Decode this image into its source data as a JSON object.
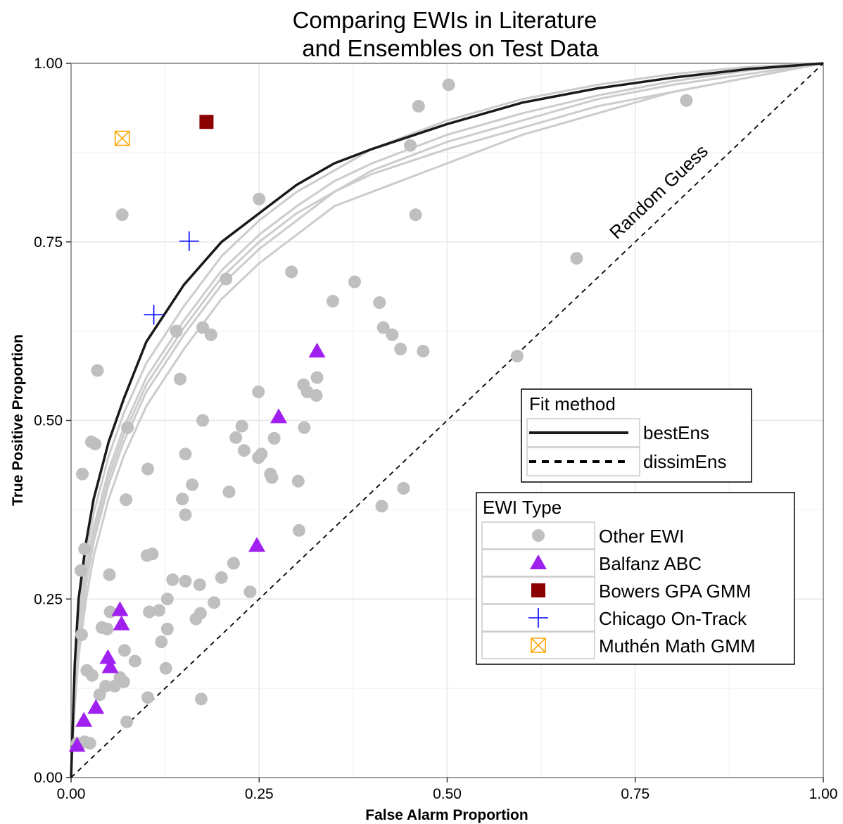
{
  "chart_data": {
    "type": "scatter",
    "title": [
      "Comparing EWIs in Literature",
      "and Ensembles on Test Data"
    ],
    "xlabel": "False Alarm Proportion",
    "ylabel": "True Positive Proportion",
    "xlim": [
      0,
      1
    ],
    "ylim": [
      0,
      1
    ],
    "x_ticks": [
      {
        "value": 0,
        "label": "0.00"
      },
      {
        "value": 0.25,
        "label": "0.25"
      },
      {
        "value": 0.5,
        "label": "0.50"
      },
      {
        "value": 0.75,
        "label": "0.75"
      },
      {
        "value": 1,
        "label": "1.00"
      }
    ],
    "y_ticks": [
      {
        "value": 0,
        "label": "0.00"
      },
      {
        "value": 0.25,
        "label": "0.25"
      },
      {
        "value": 0.5,
        "label": "0.50"
      },
      {
        "value": 0.75,
        "label": "0.75"
      },
      {
        "value": 1,
        "label": "1.00"
      }
    ],
    "grid": true,
    "annotation": {
      "text": "Random Guess",
      "x": 0.8,
      "y": 0.8
    },
    "fit_legend": {
      "title": "Fit method",
      "entries": [
        {
          "label": "bestEns",
          "line": "solid"
        },
        {
          "label": "dissimEns",
          "line": "dashed"
        }
      ]
    },
    "type_legend": {
      "title": "EWI Type",
      "entries": [
        {
          "label": "Other EWI",
          "shape": "circle",
          "color": "#bfbfbf"
        },
        {
          "label": "Balfanz ABC",
          "shape": "triangle",
          "color": "#a020f0"
        },
        {
          "label": "Bowers GPA GMM",
          "shape": "square",
          "color": "#8b0000"
        },
        {
          "label": "Chicago On-Track",
          "shape": "plus",
          "color": "#0000ff"
        },
        {
          "label": "Muthén Math GMM",
          "shape": "boxx",
          "color": "#ffa500"
        }
      ]
    },
    "curves": [
      {
        "name": "bestEns",
        "style": "solid",
        "color": "#1a1a1a",
        "points": [
          [
            0,
            0
          ],
          [
            0.005,
            0.16
          ],
          [
            0.01,
            0.25
          ],
          [
            0.02,
            0.33
          ],
          [
            0.03,
            0.39
          ],
          [
            0.05,
            0.47
          ],
          [
            0.07,
            0.53
          ],
          [
            0.1,
            0.61
          ],
          [
            0.15,
            0.69
          ],
          [
            0.2,
            0.75
          ],
          [
            0.25,
            0.79
          ],
          [
            0.3,
            0.83
          ],
          [
            0.35,
            0.86
          ],
          [
            0.4,
            0.88
          ],
          [
            0.5,
            0.915
          ],
          [
            0.6,
            0.945
          ],
          [
            0.7,
            0.965
          ],
          [
            0.8,
            0.98
          ],
          [
            0.9,
            0.992
          ],
          [
            1,
            1
          ]
        ]
      },
      {
        "style": "solid",
        "color": "#cccccc",
        "points": [
          [
            0,
            0
          ],
          [
            0.005,
            0.12
          ],
          [
            0.01,
            0.2
          ],
          [
            0.02,
            0.28
          ],
          [
            0.03,
            0.34
          ],
          [
            0.05,
            0.42
          ],
          [
            0.07,
            0.48
          ],
          [
            0.1,
            0.55
          ],
          [
            0.15,
            0.63
          ],
          [
            0.2,
            0.7
          ],
          [
            0.25,
            0.75
          ],
          [
            0.3,
            0.79
          ],
          [
            0.35,
            0.82
          ],
          [
            0.4,
            0.845
          ],
          [
            0.5,
            0.88
          ],
          [
            0.6,
            0.91
          ],
          [
            0.7,
            0.94
          ],
          [
            0.8,
            0.96
          ],
          [
            0.9,
            0.98
          ],
          [
            1,
            1
          ]
        ]
      },
      {
        "style": "solid",
        "color": "#cccccc",
        "points": [
          [
            0,
            0
          ],
          [
            0.005,
            0.1
          ],
          [
            0.01,
            0.17
          ],
          [
            0.02,
            0.25
          ],
          [
            0.03,
            0.31
          ],
          [
            0.05,
            0.39
          ],
          [
            0.07,
            0.45
          ],
          [
            0.1,
            0.52
          ],
          [
            0.15,
            0.6
          ],
          [
            0.2,
            0.67
          ],
          [
            0.25,
            0.72
          ],
          [
            0.3,
            0.76
          ],
          [
            0.35,
            0.8
          ],
          [
            0.4,
            0.82
          ],
          [
            0.45,
            0.84
          ],
          [
            0.5,
            0.86
          ],
          [
            0.6,
            0.9
          ],
          [
            0.7,
            0.93
          ],
          [
            0.8,
            0.96
          ],
          [
            0.9,
            0.98
          ],
          [
            1,
            1
          ]
        ]
      },
      {
        "style": "solid",
        "color": "#cccccc",
        "points": [
          [
            0,
            0
          ],
          [
            0.005,
            0.11
          ],
          [
            0.01,
            0.19
          ],
          [
            0.02,
            0.27
          ],
          [
            0.03,
            0.33
          ],
          [
            0.05,
            0.41
          ],
          [
            0.07,
            0.47
          ],
          [
            0.1,
            0.54
          ],
          [
            0.15,
            0.62
          ],
          [
            0.2,
            0.69
          ],
          [
            0.25,
            0.74
          ],
          [
            0.3,
            0.78
          ],
          [
            0.35,
            0.82
          ],
          [
            0.4,
            0.85
          ],
          [
            0.5,
            0.89
          ],
          [
            0.6,
            0.92
          ],
          [
            0.7,
            0.95
          ],
          [
            0.8,
            0.97
          ],
          [
            0.9,
            0.985
          ],
          [
            1,
            1
          ]
        ]
      },
      {
        "style": "solid",
        "color": "#cccccc",
        "points": [
          [
            0,
            0
          ],
          [
            0.005,
            0.14
          ],
          [
            0.01,
            0.22
          ],
          [
            0.02,
            0.31
          ],
          [
            0.03,
            0.37
          ],
          [
            0.05,
            0.45
          ],
          [
            0.07,
            0.51
          ],
          [
            0.1,
            0.58
          ],
          [
            0.15,
            0.66
          ],
          [
            0.2,
            0.73
          ],
          [
            0.25,
            0.78
          ],
          [
            0.3,
            0.82
          ],
          [
            0.35,
            0.85
          ],
          [
            0.4,
            0.88
          ],
          [
            0.5,
            0.92
          ],
          [
            0.6,
            0.95
          ],
          [
            0.7,
            0.97
          ],
          [
            0.8,
            0.985
          ],
          [
            0.9,
            0.995
          ],
          [
            1,
            1
          ]
        ]
      },
      {
        "style": "solid",
        "color": "#cccccc",
        "points": [
          [
            0,
            0
          ],
          [
            0.005,
            0.13
          ],
          [
            0.01,
            0.21
          ],
          [
            0.02,
            0.29
          ],
          [
            0.03,
            0.35
          ],
          [
            0.05,
            0.43
          ],
          [
            0.07,
            0.49
          ],
          [
            0.1,
            0.56
          ],
          [
            0.15,
            0.64
          ],
          [
            0.2,
            0.71
          ],
          [
            0.25,
            0.76
          ],
          [
            0.3,
            0.8
          ],
          [
            0.35,
            0.835
          ],
          [
            0.4,
            0.86
          ],
          [
            0.5,
            0.9
          ],
          [
            0.6,
            0.93
          ],
          [
            0.7,
            0.955
          ],
          [
            0.8,
            0.975
          ],
          [
            0.9,
            0.99
          ],
          [
            1,
            1
          ]
        ]
      },
      {
        "name": "dissimEns",
        "style": "dashed",
        "color": "#000000",
        "points": [
          [
            0,
            0
          ],
          [
            1,
            1
          ]
        ]
      }
    ],
    "series": [
      {
        "name": "Other EWI",
        "shape": "circle",
        "color": "#bfbfbf",
        "points": [
          [
            0.502,
            0.97
          ],
          [
            0.462,
            0.94
          ],
          [
            0.818,
            0.948
          ],
          [
            0.451,
            0.885
          ],
          [
            0.25,
            0.81
          ],
          [
            0.458,
            0.788
          ],
          [
            0.068,
            0.788
          ],
          [
            0.672,
            0.727
          ],
          [
            0.293,
            0.708
          ],
          [
            0.206,
            0.698
          ],
          [
            0.377,
            0.694
          ],
          [
            0.348,
            0.667
          ],
          [
            0.41,
            0.665
          ],
          [
            0.415,
            0.63
          ],
          [
            0.427,
            0.62
          ],
          [
            0.175,
            0.63
          ],
          [
            0.14,
            0.625
          ],
          [
            0.186,
            0.62
          ],
          [
            0.438,
            0.6
          ],
          [
            0.468,
            0.597
          ],
          [
            0.593,
            0.59
          ],
          [
            0.327,
            0.56
          ],
          [
            0.145,
            0.558
          ],
          [
            0.035,
            0.57
          ],
          [
            0.309,
            0.55
          ],
          [
            0.314,
            0.54
          ],
          [
            0.326,
            0.535
          ],
          [
            0.249,
            0.54
          ],
          [
            0.175,
            0.5
          ],
          [
            0.075,
            0.49
          ],
          [
            0.227,
            0.492
          ],
          [
            0.31,
            0.49
          ],
          [
            0.219,
            0.476
          ],
          [
            0.27,
            0.475
          ],
          [
            0.027,
            0.47
          ],
          [
            0.032,
            0.467
          ],
          [
            0.152,
            0.453
          ],
          [
            0.23,
            0.458
          ],
          [
            0.253,
            0.453
          ],
          [
            0.249,
            0.448
          ],
          [
            0.102,
            0.432
          ],
          [
            0.015,
            0.425
          ],
          [
            0.265,
            0.425
          ],
          [
            0.267,
            0.42
          ],
          [
            0.302,
            0.415
          ],
          [
            0.161,
            0.41
          ],
          [
            0.442,
            0.405
          ],
          [
            0.21,
            0.4
          ],
          [
            0.148,
            0.39
          ],
          [
            0.073,
            0.389
          ],
          [
            0.413,
            0.38
          ],
          [
            0.152,
            0.368
          ],
          [
            0.303,
            0.346
          ],
          [
            0.018,
            0.32
          ],
          [
            0.108,
            0.313
          ],
          [
            0.101,
            0.311
          ],
          [
            0.013,
            0.29
          ],
          [
            0.216,
            0.3
          ],
          [
            0.051,
            0.284
          ],
          [
            0.2,
            0.28
          ],
          [
            0.135,
            0.277
          ],
          [
            0.152,
            0.275
          ],
          [
            0.171,
            0.27
          ],
          [
            0.238,
            0.26
          ],
          [
            0.128,
            0.25
          ],
          [
            0.19,
            0.245
          ],
          [
            0.052,
            0.232
          ],
          [
            0.104,
            0.232
          ],
          [
            0.117,
            0.234
          ],
          [
            0.172,
            0.23
          ],
          [
            0.166,
            0.222
          ],
          [
            0.041,
            0.21
          ],
          [
            0.048,
            0.208
          ],
          [
            0.128,
            0.208
          ],
          [
            0.014,
            0.2
          ],
          [
            0.12,
            0.19
          ],
          [
            0.071,
            0.178
          ],
          [
            0.085,
            0.163
          ],
          [
            0.126,
            0.153
          ],
          [
            0.021,
            0.15
          ],
          [
            0.028,
            0.143
          ],
          [
            0.065,
            0.14
          ],
          [
            0.07,
            0.134
          ],
          [
            0.058,
            0.128
          ],
          [
            0.046,
            0.128
          ],
          [
            0.038,
            0.116
          ],
          [
            0.102,
            0.112
          ],
          [
            0.173,
            0.11
          ],
          [
            0.074,
            0.078
          ],
          [
            0.025,
            0.048
          ],
          [
            0.018,
            0.05
          ],
          [
            0.008,
            0.048
          ]
        ]
      },
      {
        "name": "Balfanz ABC",
        "shape": "triangle",
        "color": "#a020f0",
        "points": [
          [
            0.327,
            0.597
          ],
          [
            0.276,
            0.505
          ],
          [
            0.247,
            0.325
          ],
          [
            0.065,
            0.235
          ],
          [
            0.067,
            0.215
          ],
          [
            0.049,
            0.168
          ],
          [
            0.052,
            0.155
          ],
          [
            0.033,
            0.098
          ],
          [
            0.017,
            0.08
          ],
          [
            0.008,
            0.045
          ]
        ]
      },
      {
        "name": "Bowers GPA GMM",
        "shape": "square",
        "color": "#8b0000",
        "points": [
          [
            0.18,
            0.918
          ]
        ]
      },
      {
        "name": "Chicago On-Track",
        "shape": "plus",
        "color": "#0000ff",
        "points": [
          [
            0.157,
            0.751
          ],
          [
            0.11,
            0.648
          ]
        ]
      },
      {
        "name": "Muthén Math GMM",
        "shape": "boxx",
        "color": "#ffa500",
        "points": [
          [
            0.068,
            0.895
          ]
        ]
      }
    ]
  }
}
